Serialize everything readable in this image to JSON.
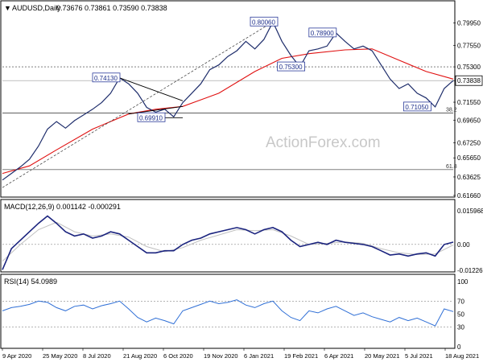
{
  "chart_data": [
    {
      "type": "line",
      "panel": "price",
      "header": {
        "symbol": "AUDUSD,Daily",
        "ohlc": "0.73676 0.73861 0.73590 0.73838"
      },
      "x_ticks": [
        "9 Apr 2020",
        "25 May 2020",
        "8 Jul 2020",
        "21 Aug 2020",
        "6 Oct 2020",
        "19 Nov 2020",
        "6 Jan 2021",
        "19 Feb 2021",
        "6 Apr 2021",
        "20 May 2021",
        "5 Jul 2021",
        "18 Aug 2021"
      ],
      "y_ticks": [
        "0.79950",
        "0.77550",
        "0.75300",
        "0.73838",
        "0.71550",
        "0.69650",
        "0.67250",
        "0.65650",
        "0.63625",
        "0.61660"
      ],
      "ylim": [
        0.6166,
        0.8085
      ],
      "current_price": "0.73838",
      "price_series": [
        [
          0,
          0.633
        ],
        [
          2,
          0.64
        ],
        [
          4,
          0.647
        ],
        [
          6,
          0.655
        ],
        [
          8,
          0.669
        ],
        [
          10,
          0.687
        ],
        [
          12,
          0.695
        ],
        [
          14,
          0.688
        ],
        [
          16,
          0.696
        ],
        [
          18,
          0.702
        ],
        [
          20,
          0.708
        ],
        [
          22,
          0.715
        ],
        [
          24,
          0.725
        ],
        [
          26,
          0.7413
        ],
        [
          28,
          0.735
        ],
        [
          30,
          0.725
        ],
        [
          32,
          0.71
        ],
        [
          34,
          0.705
        ],
        [
          36,
          0.708
        ],
        [
          38,
          0.7
        ],
        [
          40,
          0.715
        ],
        [
          42,
          0.725
        ],
        [
          44,
          0.735
        ],
        [
          46,
          0.75
        ],
        [
          48,
          0.755
        ],
        [
          50,
          0.764
        ],
        [
          52,
          0.77
        ],
        [
          54,
          0.78
        ],
        [
          56,
          0.772
        ],
        [
          58,
          0.782
        ],
        [
          60,
          0.8006
        ],
        [
          62,
          0.78
        ],
        [
          64,
          0.765
        ],
        [
          66,
          0.753
        ],
        [
          68,
          0.77
        ],
        [
          70,
          0.772
        ],
        [
          72,
          0.775
        ],
        [
          74,
          0.789
        ],
        [
          76,
          0.78
        ],
        [
          78,
          0.772
        ],
        [
          80,
          0.775
        ],
        [
          82,
          0.77
        ],
        [
          84,
          0.755
        ],
        [
          86,
          0.74
        ],
        [
          88,
          0.73
        ],
        [
          90,
          0.735
        ],
        [
          92,
          0.725
        ],
        [
          94,
          0.72
        ],
        [
          96,
          0.7105
        ],
        [
          98,
          0.73
        ],
        [
          100,
          0.7384
        ]
      ],
      "ma_series": [
        [
          0,
          0.64
        ],
        [
          6,
          0.648
        ],
        [
          12,
          0.665
        ],
        [
          20,
          0.687
        ],
        [
          28,
          0.703
        ],
        [
          34,
          0.708
        ],
        [
          40,
          0.711
        ],
        [
          48,
          0.725
        ],
        [
          56,
          0.748
        ],
        [
          62,
          0.762
        ],
        [
          68,
          0.767
        ],
        [
          76,
          0.771
        ],
        [
          82,
          0.772
        ],
        [
          88,
          0.76
        ],
        [
          94,
          0.748
        ],
        [
          100,
          0.74
        ]
      ],
      "annotations": [
        {
          "label": "0.80060",
          "value": 0.8006
        },
        {
          "label": "0.78900",
          "value": 0.789
        },
        {
          "label": "0.75300",
          "value": 0.753
        },
        {
          "label": "0.74130",
          "value": 0.7413
        },
        {
          "label": "0.69910",
          "value": 0.6991
        },
        {
          "label": "0.71050",
          "value": 0.7105
        }
      ],
      "fib_levels": [
        {
          "label": "38.2",
          "value": 0.704
        },
        {
          "label": "61.8",
          "value": 0.644
        }
      ],
      "watermark": "ActionForex.com"
    },
    {
      "type": "line",
      "panel": "macd",
      "title": "MACD(12,26,9) 0.001142 -0.000291",
      "y_ticks": [
        "0.015968",
        "0.00",
        "-0.01226"
      ],
      "ylim": [
        -0.01226,
        0.015968
      ],
      "macd": [
        [
          0,
          -0.012
        ],
        [
          2,
          -0.002
        ],
        [
          4,
          0.002
        ],
        [
          6,
          0.006
        ],
        [
          8,
          0.01
        ],
        [
          10,
          0.0135
        ],
        [
          12,
          0.01
        ],
        [
          14,
          0.006
        ],
        [
          16,
          0.004
        ],
        [
          18,
          0.005
        ],
        [
          20,
          0.003
        ],
        [
          22,
          0.004
        ],
        [
          24,
          0.006
        ],
        [
          26,
          0.005
        ],
        [
          28,
          0.002
        ],
        [
          30,
          -0.001
        ],
        [
          32,
          -0.004
        ],
        [
          34,
          -0.004
        ],
        [
          36,
          -0.003
        ],
        [
          38,
          -0.003
        ],
        [
          40,
          0.0
        ],
        [
          42,
          0.002
        ],
        [
          44,
          0.003
        ],
        [
          46,
          0.005
        ],
        [
          48,
          0.006
        ],
        [
          50,
          0.007
        ],
        [
          52,
          0.008
        ],
        [
          54,
          0.007
        ],
        [
          56,
          0.005
        ],
        [
          58,
          0.007
        ],
        [
          60,
          0.008
        ],
        [
          62,
          0.006
        ],
        [
          64,
          0.002
        ],
        [
          66,
          -0.001
        ],
        [
          68,
          0.0
        ],
        [
          70,
          0.001
        ],
        [
          72,
          0.0
        ],
        [
          74,
          0.002
        ],
        [
          76,
          0.001
        ],
        [
          78,
          0.0005
        ],
        [
          80,
          0.0
        ],
        [
          82,
          -0.001
        ],
        [
          84,
          -0.003
        ],
        [
          86,
          -0.005
        ],
        [
          88,
          -0.0045
        ],
        [
          90,
          -0.0055
        ],
        [
          92,
          -0.0045
        ],
        [
          94,
          -0.004
        ],
        [
          96,
          -0.0055
        ],
        [
          98,
          0.0
        ],
        [
          100,
          0.0011
        ]
      ],
      "signal": [
        [
          0,
          -0.008
        ],
        [
          4,
          0.0
        ],
        [
          8,
          0.007
        ],
        [
          12,
          0.0105
        ],
        [
          16,
          0.006
        ],
        [
          20,
          0.004
        ],
        [
          24,
          0.005
        ],
        [
          28,
          0.0035
        ],
        [
          32,
          -0.001
        ],
        [
          36,
          -0.0035
        ],
        [
          40,
          -0.0015
        ],
        [
          44,
          0.002
        ],
        [
          48,
          0.0045
        ],
        [
          52,
          0.007
        ],
        [
          56,
          0.0065
        ],
        [
          60,
          0.007
        ],
        [
          64,
          0.004
        ],
        [
          68,
          0.0
        ],
        [
          72,
          0.0005
        ],
        [
          76,
          0.0012
        ],
        [
          80,
          0.0005
        ],
        [
          84,
          -0.002
        ],
        [
          88,
          -0.004
        ],
        [
          92,
          -0.0048
        ],
        [
          96,
          -0.0045
        ],
        [
          100,
          -0.0003
        ]
      ]
    },
    {
      "type": "line",
      "panel": "rsi",
      "title": "RSI(14) 54.0989",
      "y_ticks": [
        "100",
        "70",
        "50",
        "30",
        "0"
      ],
      "ylim": [
        0,
        100
      ],
      "levels": [
        70,
        30
      ],
      "rsi": [
        [
          0,
          55
        ],
        [
          2,
          60
        ],
        [
          4,
          62
        ],
        [
          6,
          65
        ],
        [
          8,
          70
        ],
        [
          10,
          68
        ],
        [
          12,
          60
        ],
        [
          14,
          55
        ],
        [
          16,
          62
        ],
        [
          18,
          64
        ],
        [
          20,
          58
        ],
        [
          22,
          63
        ],
        [
          24,
          66
        ],
        [
          26,
          70
        ],
        [
          28,
          58
        ],
        [
          30,
          45
        ],
        [
          32,
          38
        ],
        [
          34,
          44
        ],
        [
          36,
          40
        ],
        [
          38,
          35
        ],
        [
          40,
          55
        ],
        [
          42,
          60
        ],
        [
          44,
          65
        ],
        [
          46,
          70
        ],
        [
          48,
          66
        ],
        [
          50,
          68
        ],
        [
          52,
          72
        ],
        [
          54,
          64
        ],
        [
          56,
          60
        ],
        [
          58,
          66
        ],
        [
          60,
          70
        ],
        [
          62,
          55
        ],
        [
          64,
          45
        ],
        [
          66,
          40
        ],
        [
          68,
          55
        ],
        [
          70,
          52
        ],
        [
          72,
          58
        ],
        [
          74,
          62
        ],
        [
          76,
          55
        ],
        [
          78,
          48
        ],
        [
          80,
          52
        ],
        [
          82,
          46
        ],
        [
          84,
          42
        ],
        [
          86,
          38
        ],
        [
          88,
          45
        ],
        [
          90,
          40
        ],
        [
          92,
          44
        ],
        [
          94,
          38
        ],
        [
          96,
          32
        ],
        [
          98,
          58
        ],
        [
          100,
          54
        ]
      ]
    }
  ]
}
